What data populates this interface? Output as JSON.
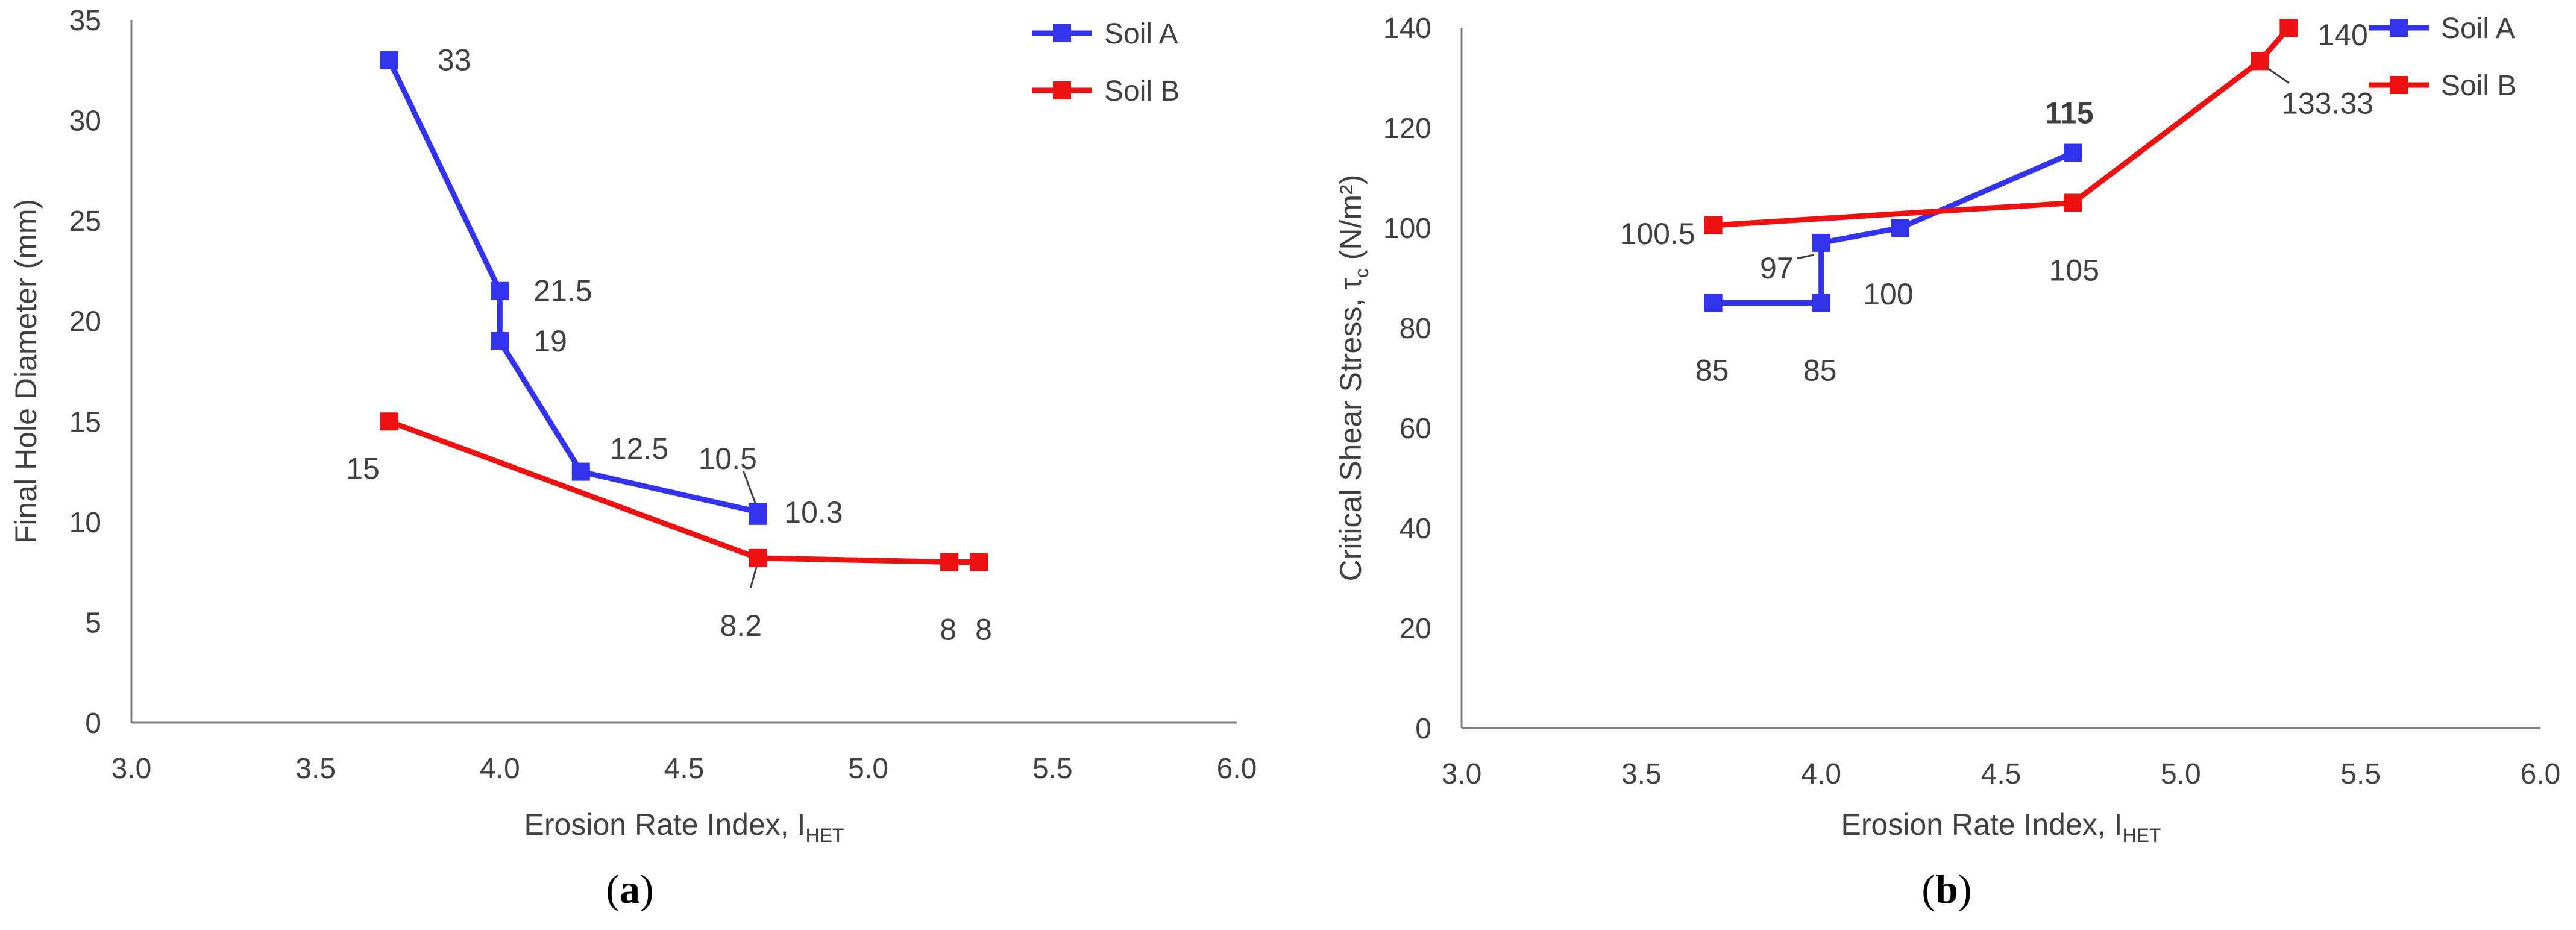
{
  "chart_data": [
    {
      "panel": "(a)",
      "panel_open": "(",
      "panel_letter": "a",
      "panel_close": ")",
      "type": "line",
      "title": "",
      "xlabel_main": "Erosion Rate Index, I",
      "xlabel_sub": "HET",
      "ylabel": "Final Hole Diameter (mm)",
      "xlim": [
        3.0,
        6.0
      ],
      "ylim": [
        0,
        35
      ],
      "xticks": [
        "3.0",
        "3.5",
        "4.0",
        "4.5",
        "5.0",
        "5.5",
        "6.0"
      ],
      "yticks": [
        "0",
        "5",
        "10",
        "15",
        "20",
        "25",
        "30",
        "35"
      ],
      "grid": false,
      "legend_position": "top-right",
      "series": [
        {
          "name": "Soil A",
          "color": "#3333ee",
          "points": [
            {
              "x": 3.7,
              "y": 33,
              "label": "33"
            },
            {
              "x": 4.0,
              "y": 21.5,
              "label": "21.5"
            },
            {
              "x": 4.0,
              "y": 19,
              "label": "19"
            },
            {
              "x": 4.22,
              "y": 12.5,
              "label": "12.5"
            },
            {
              "x": 4.7,
              "y": 10.5,
              "label": "10.5"
            },
            {
              "x": 4.7,
              "y": 10.3,
              "label": "10.3"
            }
          ]
        },
        {
          "name": "Soil B",
          "color": "#ee1111",
          "points": [
            {
              "x": 3.7,
              "y": 15,
              "label": "15"
            },
            {
              "x": 4.7,
              "y": 8.2,
              "label": "8.2"
            },
            {
              "x": 5.22,
              "y": 8,
              "label": "8"
            },
            {
              "x": 5.3,
              "y": 8,
              "label": "8"
            }
          ]
        }
      ]
    },
    {
      "panel": "(b)",
      "panel_open": "(",
      "panel_letter": "b",
      "panel_close": ")",
      "type": "line",
      "title": "",
      "xlabel_main": "Erosion Rate Index, I",
      "xlabel_sub": "HET",
      "ylabel_main": "Critical Shear Stress, τ",
      "ylabel_sub": "c",
      "ylabel_unit": " (N/m²)",
      "xlim": [
        3.0,
        6.0
      ],
      "ylim": [
        0,
        140
      ],
      "xticks": [
        "3.0",
        "3.5",
        "4.0",
        "4.5",
        "5.0",
        "5.5",
        "6.0"
      ],
      "yticks": [
        "0",
        "20",
        "40",
        "60",
        "80",
        "100",
        "120",
        "140"
      ],
      "grid": false,
      "legend_position": "top-right",
      "series": [
        {
          "name": "Soil A",
          "color": "#3333ee",
          "points": [
            {
              "x": 3.7,
              "y": 85,
              "label": "85"
            },
            {
              "x": 4.0,
              "y": 85,
              "label": "85"
            },
            {
              "x": 4.0,
              "y": 97,
              "label": "97"
            },
            {
              "x": 4.22,
              "y": 100,
              "label": "100"
            },
            {
              "x": 4.7,
              "y": 115,
              "label": "115"
            }
          ]
        },
        {
          "name": "Soil B",
          "color": "#ee1111",
          "points": [
            {
              "x": 3.7,
              "y": 100.5,
              "label": "100.5"
            },
            {
              "x": 4.7,
              "y": 105,
              "label": "105"
            },
            {
              "x": 5.22,
              "y": 133.33,
              "label": "133.33"
            },
            {
              "x": 5.3,
              "y": 140,
              "label": "140"
            }
          ]
        }
      ]
    }
  ]
}
